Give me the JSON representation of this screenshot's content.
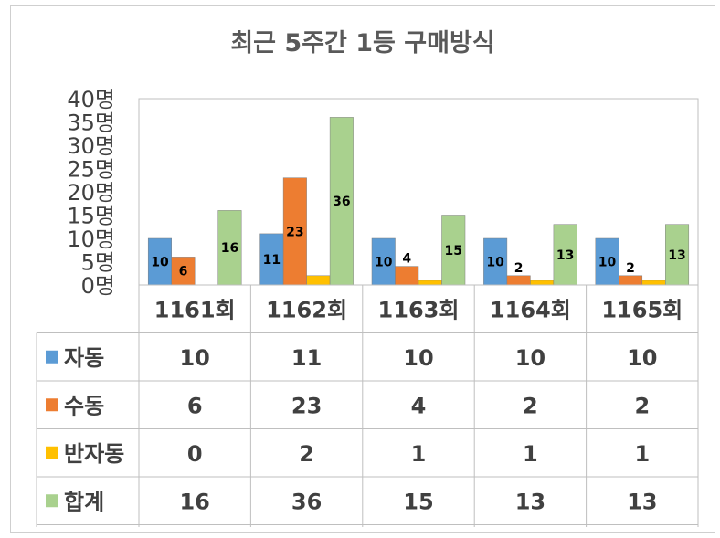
{
  "chart_data": {
    "type": "bar",
    "title": "최근 5주간 1등 구매방식",
    "categories": [
      "1161회",
      "1162회",
      "1163회",
      "1164회",
      "1165회"
    ],
    "series": [
      {
        "name": "자동",
        "values": [
          10,
          11,
          10,
          10,
          10
        ],
        "color": "#5B9BD5"
      },
      {
        "name": "수동",
        "values": [
          6,
          23,
          4,
          2,
          2
        ],
        "color": "#ED7D31"
      },
      {
        "name": "반자동",
        "values": [
          0,
          2,
          1,
          1,
          1
        ],
        "color": "#FFC000"
      },
      {
        "name": "합계",
        "values": [
          16,
          36,
          15,
          13,
          13
        ],
        "color": "#A9D18E"
      }
    ],
    "data_labels": [
      [
        "10",
        "11",
        "10",
        "10",
        "10"
      ],
      [
        "6",
        "23",
        "4",
        "2",
        "2"
      ],
      [
        "",
        "",
        "",
        "",
        ""
      ],
      [
        "16",
        "36",
        "15",
        "13",
        "13"
      ]
    ],
    "ylim": [
      0,
      40
    ],
    "yticks": [
      0,
      5,
      10,
      15,
      20,
      25,
      30,
      35,
      40
    ],
    "ytick_labels": [
      "0명",
      "5명",
      "10명",
      "15명",
      "20명",
      "25명",
      "30명",
      "35명",
      "40명"
    ],
    "grid": false,
    "legend": "data-table",
    "data_table": true
  }
}
